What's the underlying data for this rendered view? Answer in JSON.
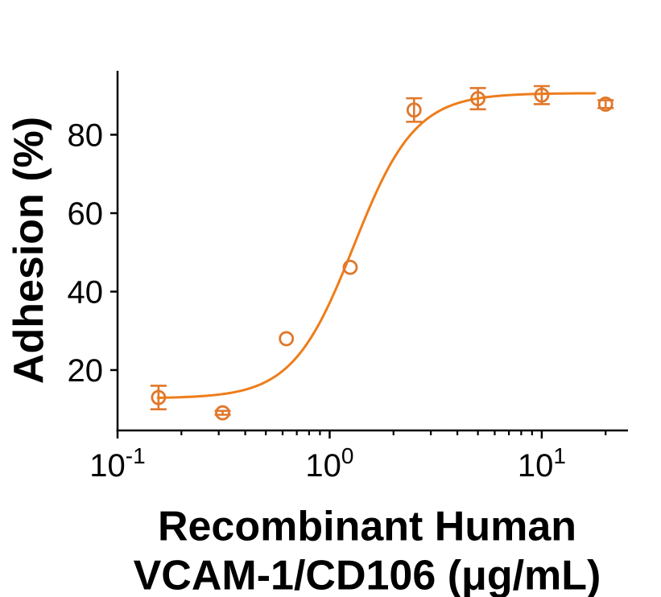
{
  "chart_data": {
    "type": "scatter",
    "subtype": "dose-response-sigmoid-fit",
    "title": "",
    "ylabel": "Adhesion (%)",
    "xlabel": "Recombinant Human VCAM-1/CD106 (μg/mL)",
    "xlabel_lines": [
      "Recombinant Human",
      "VCAM-1/CD106 (μg/mL)"
    ],
    "x_scale": "log10",
    "xlim": [
      0.1,
      25.5
    ],
    "ylim": [
      4.6,
      96.3
    ],
    "grid": false,
    "legend": null,
    "background_color": "#ffffff",
    "axis_color": "#000000",
    "x_major_ticks": [
      {
        "value": 0.1,
        "base": "10",
        "exp": "-1"
      },
      {
        "value": 1,
        "base": "10",
        "exp": "0"
      },
      {
        "value": 10,
        "base": "10",
        "exp": "1"
      }
    ],
    "x_minor_ticks": [
      0.2,
      0.3,
      0.4,
      0.5,
      0.6,
      0.7,
      0.8,
      0.9,
      2,
      3,
      4,
      5,
      6,
      7,
      8,
      9,
      20
    ],
    "y_major_ticks": [
      20,
      40,
      60,
      80
    ],
    "series": [
      {
        "name": "adhesion-data",
        "marker": "open-circle",
        "color": "#e0772b",
        "points": [
          {
            "x": 0.156,
            "y": 13.0,
            "err": 3.0
          },
          {
            "x": 0.313,
            "y": 9.1,
            "err": 0.5
          },
          {
            "x": 0.625,
            "y": 28.0,
            "err": 0
          },
          {
            "x": 1.25,
            "y": 46.2,
            "err": 0
          },
          {
            "x": 2.5,
            "y": 86.3,
            "err": 3.0
          },
          {
            "x": 5,
            "y": 89.2,
            "err": 2.7
          },
          {
            "x": 10,
            "y": 90.1,
            "err": 2.3
          },
          {
            "x": 20,
            "y": 87.8,
            "err": 1.0
          }
        ]
      }
    ],
    "fit_curve": {
      "model": "4PL",
      "color": "#ee7d1a",
      "bottom": 12.8,
      "top": 90.6,
      "ec50": 1.3,
      "hill": 3.0,
      "x_start": 0.155,
      "x_end": 17.8
    }
  }
}
